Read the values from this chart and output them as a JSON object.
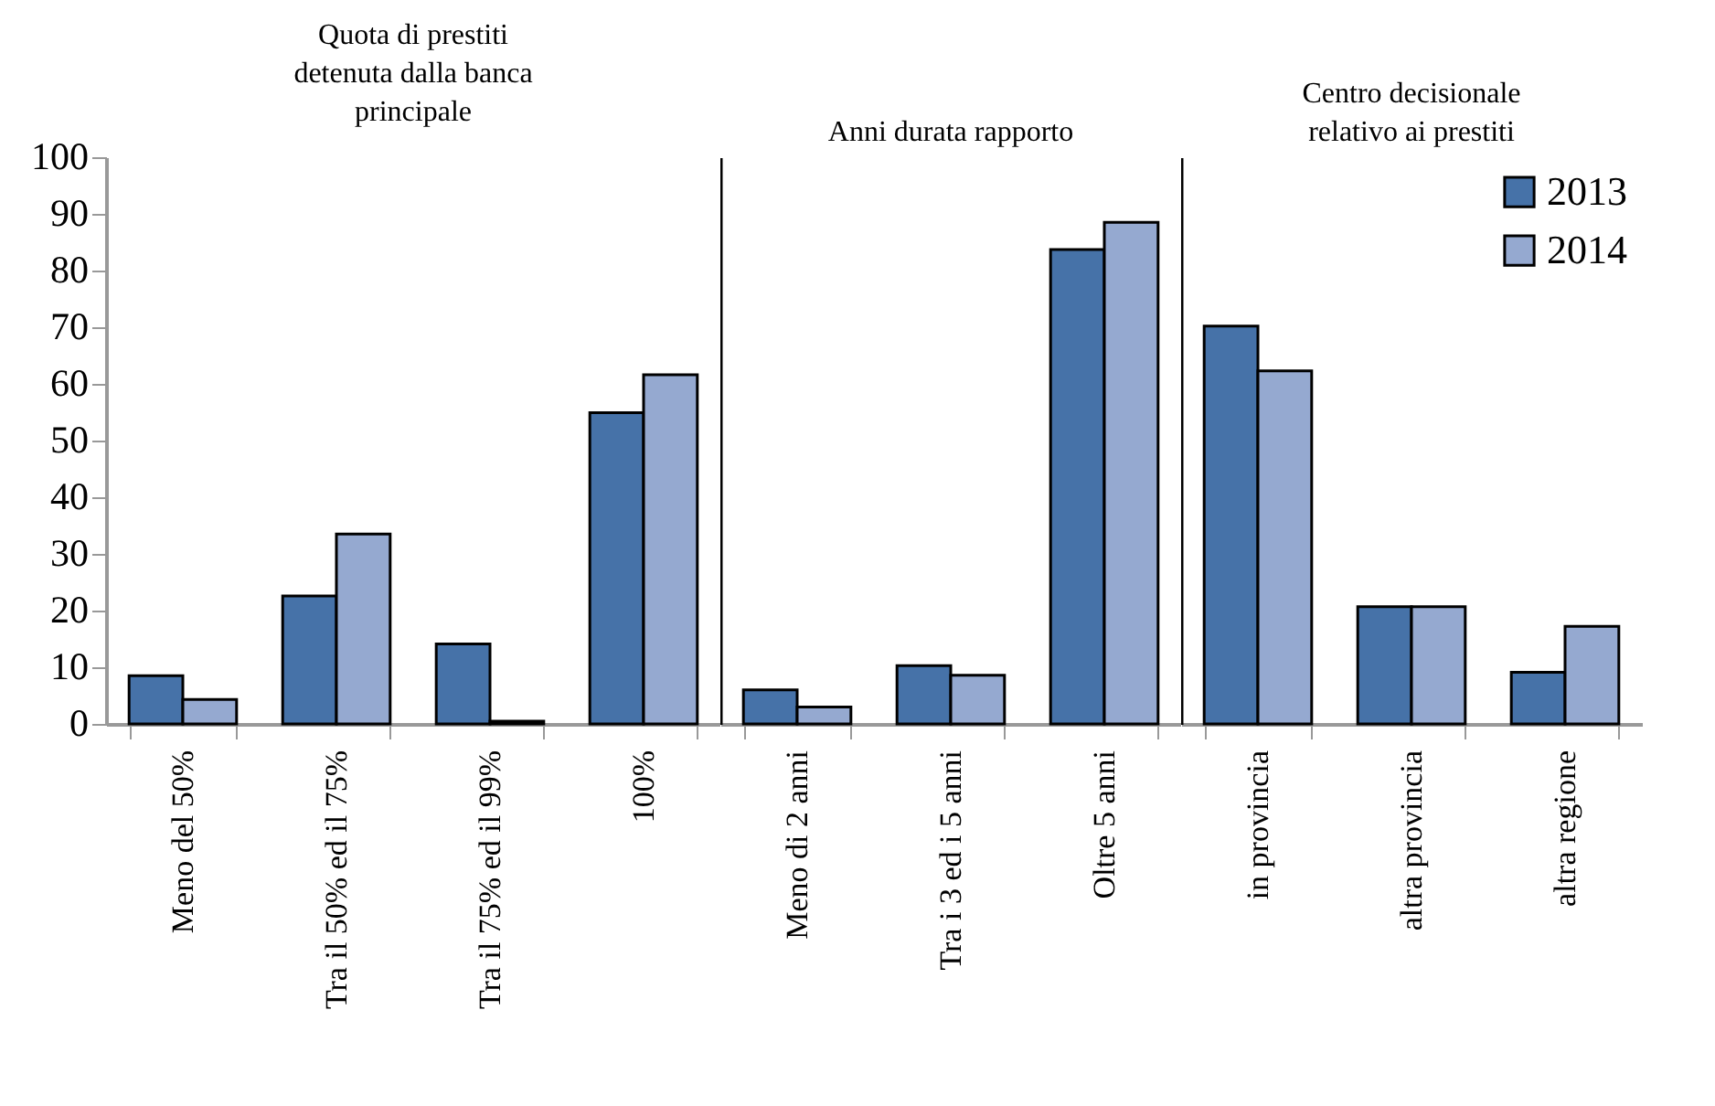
{
  "chart_data": [
    {
      "type": "bar",
      "title": "Quota di prestiti detenuta dalla banca principale",
      "categories": [
        "Meno del 50%",
        "Tra il 50% ed il 75%",
        "Tra il 75% ed il 99%",
        "100%"
      ],
      "ylim": [
        0,
        100
      ],
      "yticks": [
        0,
        10,
        20,
        30,
        40,
        50,
        60,
        70,
        80,
        90,
        100
      ],
      "series": [
        {
          "color": "#4672a8",
          "values": [
            8.5,
            22.6,
            14.1,
            54.9
          ]
        },
        {
          "color": "#95a9d0",
          "values": [
            4.3,
            33.5,
            0.5,
            61.6
          ]
        }
      ]
    },
    {
      "type": "bar",
      "title": "Anni durata rapporto",
      "categories": [
        "Meno di 2 anni",
        "Tra i 3 ed i 5 anni",
        "Oltre 5 anni"
      ],
      "ylim": [
        0,
        100
      ],
      "tick_labels": "x",
      "series": [
        {
          "color": "#4672a8",
          "values": [
            6.0,
            10.3,
            83.7
          ]
        },
        {
          "color": "#95a9d0",
          "values": [
            3.0,
            8.6,
            88.5
          ]
        }
      ]
    },
    {
      "type": "bar",
      "title": "Centro decisionale relativo ai prestiti",
      "categories": [
        "in provincia",
        "altra provincia",
        "altra regione"
      ],
      "ylim": [
        0,
        100
      ],
      "tick_labels": "x",
      "legend": "top right",
      "series": [
        {
          "name": "2013",
          "color": "#4672a8",
          "values": [
            70.2,
            20.7,
            9.1
          ]
        },
        {
          "name": "2014",
          "color": "#95a9d0",
          "values": [
            62.3,
            20.7,
            17.2
          ]
        }
      ]
    }
  ]
}
